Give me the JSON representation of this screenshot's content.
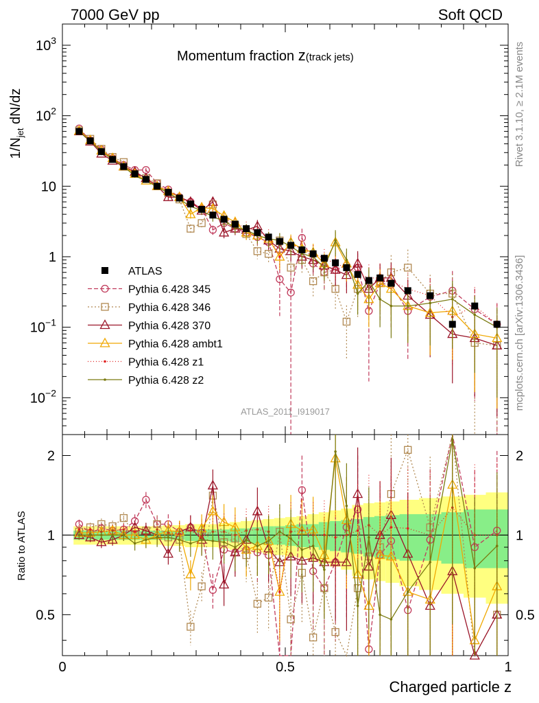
{
  "header": {
    "left": "7000 GeV pp",
    "right": "Soft QCD"
  },
  "side_labels": {
    "rivet": "Rivet 3.1.10, ≥ 2.1M events",
    "mcplots": "mcplots.cern.ch [arXiv:1306.3436]"
  },
  "chart_data": [
    {
      "type": "scatter",
      "title_main": "Momentum fraction ",
      "title_z": "z",
      "title_sub": "(track jets)",
      "analysis_tag": "ATLAS_2011_I919017",
      "ylabel_main": "1/N",
      "ylabel_sub": "jet",
      "ylabel_tail": " dN/dz",
      "yscale": "log",
      "ylim": [
        0.003,
        2000
      ],
      "xlim": [
        0,
        1
      ],
      "yticks": [
        {
          "v": 1000,
          "base": "10",
          "exp": "3"
        },
        {
          "v": 100,
          "base": "10",
          "exp": "2"
        },
        {
          "v": 10,
          "base": "10",
          "exp": ""
        },
        {
          "v": 1,
          "base": "1",
          "exp": ""
        },
        {
          "v": 0.1,
          "base": "10",
          "exp": "−1"
        },
        {
          "v": 0.01,
          "base": "10",
          "exp": "−2"
        }
      ],
      "x": [
        0.0375,
        0.0625,
        0.0875,
        0.1125,
        0.1375,
        0.1625,
        0.1875,
        0.2125,
        0.2375,
        0.2625,
        0.2875,
        0.3125,
        0.3375,
        0.3625,
        0.3875,
        0.4125,
        0.4375,
        0.4625,
        0.4875,
        0.5125,
        0.5375,
        0.5625,
        0.5875,
        0.6125,
        0.6375,
        0.6625,
        0.6875,
        0.7125,
        0.7375,
        0.775,
        0.825,
        0.875,
        0.925,
        0.975
      ],
      "data": {
        "name": "ATLAS",
        "color": "#000000",
        "values": [
          60,
          44,
          31,
          24,
          19,
          15,
          12.5,
          10,
          8.2,
          6.8,
          5.6,
          4.7,
          3.9,
          3.4,
          2.9,
          2.5,
          2.2,
          1.9,
          1.65,
          1.45,
          1.25,
          1.1,
          0.95,
          0.82,
          0.7,
          0.56,
          0.46,
          0.5,
          0.42,
          0.33,
          0.28,
          0.11,
          0.2,
          0.11
        ],
        "band_rel_stat": [
          0.04,
          0.04,
          0.04,
          0.04,
          0.04,
          0.04,
          0.04,
          0.04,
          0.04,
          0.04,
          0.05,
          0.05,
          0.05,
          0.05,
          0.06,
          0.06,
          0.07,
          0.08,
          0.08,
          0.09,
          0.1,
          0.1,
          0.12,
          0.13,
          0.14,
          0.15,
          0.17,
          0.18,
          0.19,
          0.2,
          0.2,
          0.22,
          0.25,
          0.25
        ],
        "band_rel_total": [
          0.08,
          0.08,
          0.08,
          0.08,
          0.08,
          0.08,
          0.08,
          0.08,
          0.09,
          0.09,
          0.1,
          0.1,
          0.1,
          0.11,
          0.12,
          0.13,
          0.14,
          0.15,
          0.16,
          0.17,
          0.18,
          0.2,
          0.22,
          0.24,
          0.26,
          0.3,
          0.32,
          0.33,
          0.34,
          0.36,
          0.38,
          0.4,
          0.42,
          0.45
        ]
      },
      "series": [
        {
          "name": "Pythia 6.428 345",
          "color": "#c0395a",
          "marker": "circle",
          "dash": "6,3",
          "values": [
            66,
            45,
            33,
            25,
            20,
            17,
            17,
            11,
            9,
            7,
            6,
            4.8,
            2.4,
            3,
            2.5,
            2.2,
            1.9,
            1.6,
            0.48,
            0.31,
            1.85,
            0.8,
            0.6,
            0.65,
            0.75,
            0.7,
            0.17,
            0.42,
            0.4,
            0.17,
            0.27,
            0.33,
            0.18,
            0.11
          ],
          "ratio": [
            1.1,
            1.02,
            1.06,
            1.04,
            1.05,
            1.13,
            1.36,
            1.1,
            1.1,
            1.03,
            1.07,
            1.02,
            0.62,
            0.88,
            0.86,
            0.88,
            0.86,
            0.84,
            0.29,
            0.21,
            1.48,
            0.73,
            0.63,
            0.79,
            1.07,
            1.25,
            0.37,
            0.84,
            0.95,
            0.52,
            0.96,
            3.0,
            0.9,
            1.04
          ],
          "err": [
            0.04,
            0.04,
            0.05,
            0.05,
            0.05,
            0.06,
            0.07,
            0.08,
            0.09,
            0.1,
            0.11,
            0.13,
            0.15,
            0.17,
            0.19,
            0.21,
            0.23,
            0.25,
            0.7,
            1.0,
            0.35,
            0.4,
            0.45,
            0.5,
            0.55,
            0.6,
            0.9,
            0.7,
            0.75,
            0.8,
            0.85,
            0.9,
            0.95,
            1.0
          ]
        },
        {
          "name": "Pythia 6.428 346",
          "color": "#b08850",
          "marker": "square",
          "dash": "2,3",
          "values": [
            62,
            47,
            34,
            26,
            22,
            15,
            13,
            11,
            8,
            6.5,
            2.5,
            3,
            5.5,
            3.2,
            2.8,
            2.1,
            1.2,
            1.1,
            1.7,
            0.7,
            0.9,
            0.45,
            0.6,
            0.35,
            0.12,
            0.35,
            0.38,
            0.45,
            0.6,
            0.7,
            0.3,
            0.3,
            0.06,
            0.055
          ],
          "ratio": [
            1.03,
            1.07,
            1.1,
            1.08,
            1.16,
            1.0,
            1.04,
            1.1,
            0.98,
            0.96,
            0.45,
            0.64,
            1.41,
            0.94,
            0.97,
            0.84,
            0.55,
            0.58,
            1.03,
            0.48,
            0.72,
            0.41,
            0.63,
            0.43,
            0.17,
            0.63,
            0.83,
            0.9,
            1.43,
            2.1,
            1.07,
            2.7,
            0.3,
            0.5
          ],
          "err": [
            0.04,
            0.04,
            0.05,
            0.05,
            0.05,
            0.06,
            0.07,
            0.08,
            0.09,
            0.1,
            0.15,
            0.13,
            0.15,
            0.17,
            0.19,
            0.21,
            0.23,
            0.25,
            0.27,
            0.35,
            0.35,
            0.4,
            0.45,
            0.5,
            0.7,
            0.6,
            0.65,
            0.7,
            0.75,
            0.8,
            0.85,
            0.9,
            0.95,
            1.0
          ]
        },
        {
          "name": "Pythia 6.428 370",
          "color": "#9a1428",
          "marker": "triangle",
          "dash": "",
          "values": [
            60,
            43,
            29,
            23,
            19,
            16,
            13,
            10,
            7,
            7,
            6,
            4.5,
            6,
            2.2,
            2.5,
            2.4,
            2.7,
            1.7,
            1.3,
            1.2,
            1.0,
            0.9,
            0.75,
            0.65,
            0.55,
            0.8,
            0.35,
            0.5,
            0.5,
            0.28,
            0.15,
            0.08,
            0.07,
            0.055
          ],
          "ratio": [
            1.0,
            0.98,
            0.94,
            0.96,
            1.0,
            1.07,
            1.04,
            1.0,
            0.85,
            1.03,
            1.07,
            0.96,
            1.54,
            0.65,
            0.86,
            0.96,
            1.23,
            0.89,
            0.79,
            0.83,
            0.8,
            0.82,
            0.79,
            0.79,
            0.79,
            1.43,
            0.76,
            1.0,
            1.19,
            0.85,
            0.54,
            0.73,
            0.35,
            0.5
          ],
          "err": [
            0.04,
            0.04,
            0.05,
            0.05,
            0.05,
            0.06,
            0.07,
            0.08,
            0.09,
            0.1,
            0.11,
            0.13,
            0.15,
            0.17,
            0.19,
            0.21,
            0.23,
            0.25,
            0.27,
            0.29,
            0.31,
            0.33,
            0.35,
            0.4,
            0.45,
            0.5,
            0.55,
            0.6,
            0.65,
            0.7,
            0.75,
            0.8,
            0.85,
            0.9
          ]
        },
        {
          "name": "Pythia 6.428 ambt1",
          "color": "#f0a800",
          "marker": "triangle",
          "dash": "",
          "values": [
            61,
            45,
            32,
            25,
            19,
            15,
            12,
            10,
            8.5,
            7,
            4,
            5,
            4.8,
            3.8,
            3.1,
            2.2,
            2.0,
            1.8,
            1.0,
            1.6,
            1.3,
            1.15,
            0.8,
            1.6,
            0.8,
            0.4,
            0.25,
            0.42,
            0.35,
            0.2,
            0.16,
            0.17,
            0.08,
            0.07
          ],
          "ratio": [
            1.02,
            1.02,
            1.03,
            1.04,
            1.0,
            1.0,
            0.96,
            1.0,
            1.04,
            1.03,
            0.71,
            1.06,
            1.23,
            1.12,
            1.07,
            0.88,
            0.91,
            0.95,
            0.61,
            1.1,
            1.04,
            1.05,
            0.84,
            1.95,
            1.14,
            0.71,
            0.54,
            0.84,
            0.83,
            0.61,
            0.57,
            1.55,
            0.4,
            0.64
          ],
          "err": [
            0.04,
            0.04,
            0.05,
            0.05,
            0.05,
            0.06,
            0.07,
            0.08,
            0.09,
            0.1,
            0.13,
            0.13,
            0.15,
            0.17,
            0.19,
            0.21,
            0.23,
            0.25,
            0.35,
            0.29,
            0.31,
            0.33,
            0.4,
            0.4,
            0.45,
            0.55,
            0.6,
            0.6,
            0.65,
            0.7,
            0.75,
            0.8,
            0.85,
            0.9
          ]
        },
        {
          "name": "Pythia 6.428 z1",
          "color": "#e02020",
          "marker": "dot",
          "dash": "1,3",
          "values": [
            63,
            46,
            32,
            25,
            20,
            15.5,
            12.5,
            10.5,
            8.4,
            6.9,
            5.8,
            4.6,
            4.0,
            3.5,
            2.9,
            2.6,
            2.3,
            1.95,
            1.0,
            1.5,
            1.3,
            1.1,
            0.95,
            0.8,
            0.7,
            0.58,
            0.5,
            0.5,
            0.45,
            0.35,
            0.28,
            0.14,
            0.2,
            0.11
          ],
          "ratio": [
            1.05,
            1.05,
            1.03,
            1.04,
            1.05,
            1.03,
            1.0,
            1.05,
            1.02,
            1.01,
            1.04,
            0.98,
            1.03,
            1.03,
            1.0,
            1.04,
            1.05,
            1.03,
            0.61,
            1.03,
            1.04,
            1.0,
            1.0,
            0.98,
            1.0,
            1.04,
            1.09,
            1.0,
            1.07,
            1.06,
            1.0,
            1.27,
            1.0,
            1.0
          ],
          "err": [
            0.04,
            0.04,
            0.05,
            0.05,
            0.05,
            0.06,
            0.07,
            0.08,
            0.09,
            0.1,
            0.11,
            0.13,
            0.15,
            0.17,
            0.19,
            0.21,
            0.23,
            0.25,
            0.35,
            0.29,
            0.31,
            0.33,
            0.35,
            0.4,
            0.45,
            0.5,
            0.55,
            0.6,
            0.65,
            0.7,
            0.75,
            0.8,
            0.85,
            0.9
          ]
        },
        {
          "name": "Pythia 6.428 z2",
          "color": "#7a7a10",
          "marker": "dot",
          "dash": "",
          "values": [
            60,
            44,
            31,
            24,
            19,
            14,
            12,
            9.8,
            8,
            6.5,
            5.2,
            4.5,
            3.7,
            3.2,
            2.6,
            2.4,
            2.0,
            1.8,
            1.7,
            1.4,
            1.1,
            1.0,
            0.7,
            1.7,
            0.9,
            0.3,
            0.45,
            0.25,
            0.2,
            0.2,
            0.22,
            0.25,
            0.15,
            0.1
          ],
          "ratio": [
            1.0,
            1.0,
            1.0,
            1.0,
            1.0,
            0.93,
            0.96,
            0.98,
            0.98,
            0.96,
            0.93,
            0.96,
            0.95,
            0.94,
            0.9,
            0.96,
            0.91,
            0.95,
            1.03,
            0.97,
            0.88,
            0.91,
            0.74,
            2.07,
            1.29,
            0.54,
            0.98,
            0.5,
            0.48,
            0.61,
            0.79,
            2.3,
            0.75,
            0.91
          ],
          "err": [
            0.04,
            0.04,
            0.05,
            0.05,
            0.05,
            0.06,
            0.07,
            0.08,
            0.09,
            0.1,
            0.11,
            0.13,
            0.15,
            0.17,
            0.19,
            0.21,
            0.23,
            0.25,
            0.27,
            0.29,
            0.31,
            0.33,
            0.35,
            0.4,
            0.45,
            0.5,
            0.55,
            0.6,
            0.65,
            0.7,
            0.75,
            0.8,
            0.85,
            0.9
          ]
        }
      ],
      "legend_location": "center-left"
    },
    {
      "type": "scatter",
      "panel": "ratio",
      "ylabel": "Ratio to ATLAS",
      "xlabel": "Charged particle z",
      "xlim": [
        0,
        1
      ],
      "ylim": [
        0.35,
        2.4
      ],
      "yscale": "log",
      "yticks": [
        "0.5",
        "1",
        "2"
      ],
      "xticks": [
        "0",
        "0.5",
        "1"
      ]
    }
  ]
}
